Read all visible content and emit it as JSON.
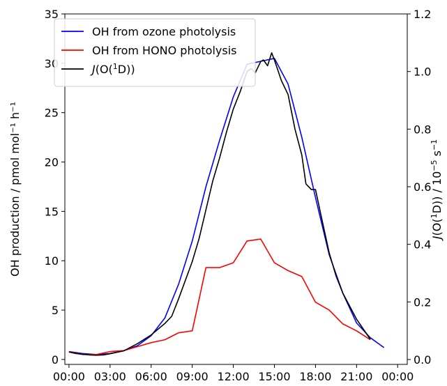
{
  "chart_data": {
    "type": "line",
    "title": "",
    "xlabel": "",
    "ylabel_left": "OH production / pmol mol⁻¹ h⁻¹",
    "ylabel_right_parts": [
      "J",
      "(O(",
      "1",
      "D))  /  10",
      "−5",
      " s",
      "−1"
    ],
    "x_tick_labels": [
      "00:00",
      "03:00",
      "06:00",
      "09:00",
      "12:00",
      "15:00",
      "18:00",
      "21:00",
      "00:00"
    ],
    "x_range_hours": [
      -0.3,
      24.7
    ],
    "y_left": {
      "range": [
        -0.5,
        35
      ],
      "ticks": [
        0,
        5,
        10,
        15,
        20,
        25,
        30,
        35
      ]
    },
    "y_right": {
      "range": [
        -0.017,
        1.2
      ],
      "ticks": [
        0.0,
        0.2,
        0.4,
        0.6,
        0.8,
        1.0,
        1.2
      ],
      "tick_labels": [
        "0.0",
        "0.2",
        "0.4",
        "0.6",
        "0.8",
        "1.0",
        "1.2"
      ]
    },
    "grid": false,
    "legend_position": "top-left",
    "series": [
      {
        "name": "OH from ozone photolysis",
        "axis": "left",
        "color": "#0000ff",
        "x": [
          0,
          1,
          2,
          3,
          4,
          5,
          6,
          7,
          8,
          9,
          10,
          11,
          12,
          13,
          14,
          15,
          16,
          17,
          18,
          19,
          20,
          21,
          22,
          23
        ],
        "y": [
          0.8,
          0.6,
          0.5,
          0.6,
          0.9,
          1.4,
          2.4,
          4.2,
          7.6,
          12.0,
          17.5,
          22.2,
          26.6,
          29.9,
          30.2,
          30.5,
          27.9,
          22.5,
          16.4,
          10.6,
          6.7,
          3.7,
          2.2,
          1.2
        ]
      },
      {
        "name": "OH from HONO photolysis",
        "axis": "left",
        "color": "#ff0000",
        "x": [
          0,
          1,
          2,
          3,
          4,
          5,
          6,
          7,
          8,
          9,
          10,
          11,
          12,
          13,
          14,
          15,
          16,
          17,
          18,
          19,
          20,
          21,
          22
        ],
        "y": [
          0.8,
          0.5,
          0.5,
          0.8,
          0.9,
          1.3,
          1.7,
          2.0,
          2.7,
          2.9,
          9.3,
          9.3,
          9.8,
          12.0,
          12.2,
          9.8,
          9.0,
          8.4,
          5.8,
          5.0,
          3.6,
          2.9,
          2.0
        ]
      },
      {
        "name": "J(O(¹D))",
        "axis": "right",
        "color": "#000000",
        "x": [
          0,
          0.5,
          1,
          1.5,
          2,
          2.5,
          3,
          4,
          5,
          6,
          7,
          7.5,
          8,
          9,
          9.5,
          10,
          10.5,
          11,
          11.5,
          12,
          12.5,
          13,
          13.3,
          13.6,
          14,
          14.2,
          14.5,
          14.8,
          15,
          15.5,
          16,
          16.5,
          17,
          17.3,
          17.7,
          18,
          18.5,
          19,
          19.5,
          20,
          21,
          22
        ],
        "y": [
          0.026,
          0.021,
          0.018,
          0.016,
          0.015,
          0.016,
          0.02,
          0.03,
          0.055,
          0.085,
          0.125,
          0.15,
          0.21,
          0.34,
          0.42,
          0.52,
          0.62,
          0.7,
          0.79,
          0.87,
          0.93,
          1.0,
          1.01,
          0.995,
          1.035,
          1.04,
          1.02,
          1.065,
          1.04,
          0.97,
          0.92,
          0.8,
          0.71,
          0.61,
          0.59,
          0.59,
          0.48,
          0.37,
          0.29,
          0.23,
          0.14,
          0.07
        ]
      }
    ]
  }
}
